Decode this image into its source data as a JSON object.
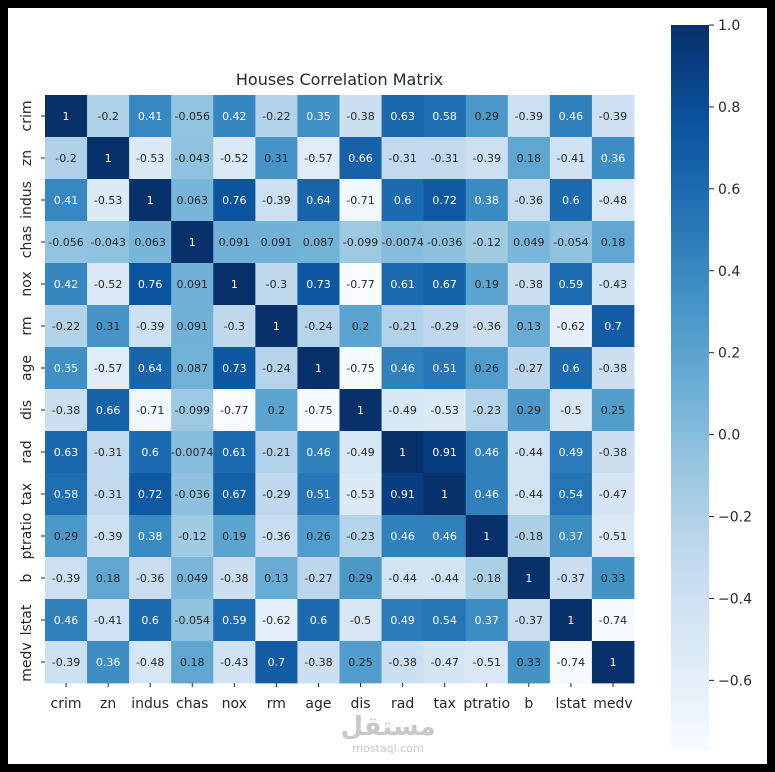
{
  "chart_data": {
    "type": "heatmap",
    "title": "Houses Correlation Matrix",
    "xlabel": "",
    "ylabel": "",
    "variables": [
      "crim",
      "zn",
      "indus",
      "chas",
      "nox",
      "rm",
      "age",
      "dis",
      "rad",
      "tax",
      "ptratio",
      "b",
      "lstat",
      "medv"
    ],
    "cell_labels": [
      [
        "1",
        "-0.2",
        "0.41",
        "-0.056",
        "0.42",
        "-0.22",
        "0.35",
        "-0.38",
        "0.63",
        "0.58",
        "0.29",
        "-0.39",
        "0.46",
        "-0.39"
      ],
      [
        "-0.2",
        "1",
        "-0.53",
        "-0.043",
        "-0.52",
        "0.31",
        "-0.57",
        "0.66",
        "-0.31",
        "-0.31",
        "-0.39",
        "0.18",
        "-0.41",
        "0.36"
      ],
      [
        "0.41",
        "-0.53",
        "1",
        "0.063",
        "0.76",
        "-0.39",
        "0.64",
        "-0.71",
        "0.6",
        "0.72",
        "0.38",
        "-0.36",
        "0.6",
        "-0.48"
      ],
      [
        "-0.056",
        "-0.043",
        "0.063",
        "1",
        "0.091",
        "0.091",
        "0.087",
        "-0.099",
        "-0.0074",
        "-0.036",
        "-0.12",
        "0.049",
        "-0.054",
        "0.18"
      ],
      [
        "0.42",
        "-0.52",
        "0.76",
        "0.091",
        "1",
        "-0.3",
        "0.73",
        "-0.77",
        "0.61",
        "0.67",
        "0.19",
        "-0.38",
        "0.59",
        "-0.43"
      ],
      [
        "-0.22",
        "0.31",
        "-0.39",
        "0.091",
        "-0.3",
        "1",
        "-0.24",
        "0.2",
        "-0.21",
        "-0.29",
        "-0.36",
        "0.13",
        "-0.62",
        "0.7"
      ],
      [
        "0.35",
        "-0.57",
        "0.64",
        "0.087",
        "0.73",
        "-0.24",
        "1",
        "-0.75",
        "0.46",
        "0.51",
        "0.26",
        "-0.27",
        "0.6",
        "-0.38"
      ],
      [
        "-0.38",
        "0.66",
        "-0.71",
        "-0.099",
        "-0.77",
        "0.2",
        "-0.75",
        "1",
        "-0.49",
        "-0.53",
        "-0.23",
        "0.29",
        "-0.5",
        "0.25"
      ],
      [
        "0.63",
        "-0.31",
        "0.6",
        "-0.0074",
        "0.61",
        "-0.21",
        "0.46",
        "-0.49",
        "1",
        "0.91",
        "0.46",
        "-0.44",
        "0.49",
        "-0.38"
      ],
      [
        "0.58",
        "-0.31",
        "0.72",
        "-0.036",
        "0.67",
        "-0.29",
        "0.51",
        "-0.53",
        "0.91",
        "1",
        "0.46",
        "-0.44",
        "0.54",
        "-0.47"
      ],
      [
        "0.29",
        "-0.39",
        "0.38",
        "-0.12",
        "0.19",
        "-0.36",
        "0.26",
        "-0.23",
        "0.46",
        "0.46",
        "1",
        "-0.18",
        "0.37",
        "-0.51"
      ],
      [
        "-0.39",
        "0.18",
        "-0.36",
        "0.049",
        "-0.38",
        "0.13",
        "-0.27",
        "0.29",
        "-0.44",
        "-0.44",
        "-0.18",
        "1",
        "-0.37",
        "0.33"
      ],
      [
        "0.46",
        "-0.41",
        "0.6",
        "-0.054",
        "0.59",
        "-0.62",
        "0.6",
        "-0.5",
        "0.49",
        "0.54",
        "0.37",
        "-0.37",
        "1",
        "-0.74"
      ],
      [
        "-0.39",
        "0.36",
        "-0.48",
        "0.18",
        "-0.43",
        "0.7",
        "-0.38",
        "0.25",
        "-0.38",
        "-0.47",
        "-0.51",
        "0.33",
        "-0.74",
        "1"
      ]
    ],
    "colorbar": {
      "range": [
        -0.77,
        1.0
      ],
      "ticks": [
        1.0,
        0.8,
        0.6,
        0.4,
        0.2,
        0.0,
        -0.2,
        -0.4,
        -0.6
      ],
      "tick_labels": [
        "1.0",
        "0.8",
        "0.6",
        "0.4",
        "0.2",
        "0.0",
        "−0.2",
        "−0.4",
        "−0.6"
      ],
      "colormap": "Blues"
    },
    "grid": false,
    "legend": "colorbar-right"
  },
  "colors": {
    "frame": "#000000",
    "background": "#ffffff",
    "text": "#262626",
    "cell_text_dark": "#262626",
    "cell_text_light": "#ffffff",
    "watermark": "#c8c8c8"
  },
  "watermark": {
    "arabic": "مستقل",
    "latin": "mostaql.com"
  }
}
